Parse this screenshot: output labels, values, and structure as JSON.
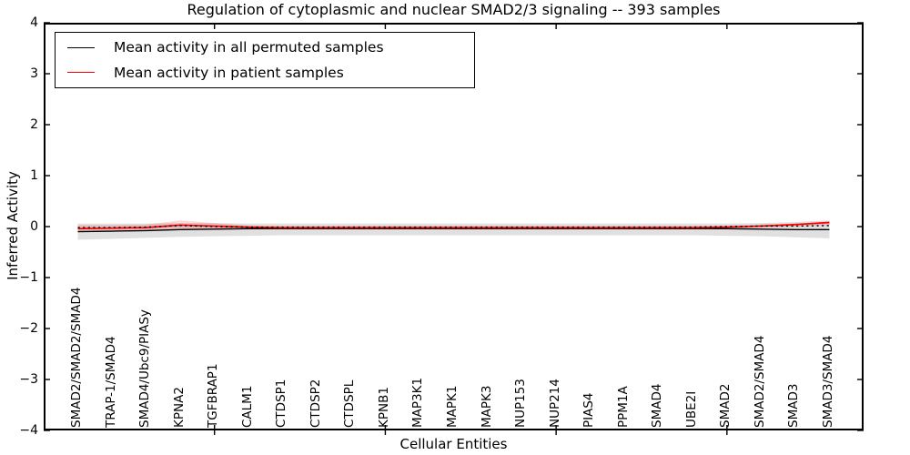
{
  "title": "Regulation of cytoplasmic and nuclear SMAD2/3 signaling -- 393 samples",
  "axes": {
    "ylabel": "Inferred Activity",
    "xlabel": "Cellular Entities",
    "yticks": [
      {
        "label": "4",
        "value": 4
      },
      {
        "label": "3",
        "value": 3
      },
      {
        "label": "2",
        "value": 2
      },
      {
        "label": "1",
        "value": 1
      },
      {
        "label": "0",
        "value": 0
      },
      {
        "label": "−1",
        "value": -1
      },
      {
        "label": "−2",
        "value": -2
      },
      {
        "label": "−3",
        "value": -3
      },
      {
        "label": "−4",
        "value": -4
      }
    ]
  },
  "legend": [
    {
      "label": "Mean activity in all permuted samples",
      "color": "#000000"
    },
    {
      "label": "Mean activity in patient samples",
      "color": "#ff0000"
    }
  ],
  "chart_data": {
    "type": "line",
    "title": "Regulation of cytoplasmic and nuclear SMAD2/3 signaling -- 393 samples",
    "xlabel": "Cellular Entities",
    "ylabel": "Inferred Activity",
    "ylim": [
      -4,
      4
    ],
    "xlim": [
      0,
      24
    ],
    "grid": false,
    "legend_position": "upper left",
    "xticks_numeric": [
      5,
      10,
      15,
      20
    ],
    "categories": [
      "SMAD2/SMAD2/SMAD4",
      "TRAP-1/SMAD4",
      "SMAD4/Ubc9/PIASy",
      "KPNA2",
      "TGFBRAP1",
      "CALM1",
      "CTDSP1",
      "CTDSP2",
      "CTDSPL",
      "KPNB1",
      "MAP3K1",
      "MAPK1",
      "MAPK3",
      "NUP153",
      "NUP214",
      "PIAS4",
      "PPM1A",
      "SMAD4",
      "UBE2I",
      "SMAD2",
      "SMAD2/SMAD4",
      "SMAD3",
      "SMAD3/SMAD4"
    ],
    "series": [
      {
        "name": "Mean activity in all permuted samples",
        "color": "#000000",
        "style": "solid",
        "values": [
          -0.1,
          -0.09,
          -0.08,
          -0.06,
          -0.05,
          -0.04,
          -0.04,
          -0.04,
          -0.04,
          -0.04,
          -0.04,
          -0.04,
          -0.04,
          -0.04,
          -0.04,
          -0.04,
          -0.04,
          -0.04,
          -0.04,
          -0.04,
          -0.05,
          -0.06,
          -0.06
        ]
      },
      {
        "name": "Mean activity in patient samples",
        "color": "#ff0000",
        "style": "solid",
        "values": [
          -0.04,
          -0.03,
          -0.02,
          0.03,
          0.01,
          -0.01,
          -0.02,
          -0.02,
          -0.02,
          -0.02,
          -0.02,
          -0.02,
          -0.02,
          -0.02,
          -0.02,
          -0.02,
          -0.02,
          -0.02,
          -0.02,
          -0.01,
          0.01,
          0.04,
          0.08
        ]
      },
      {
        "name": "unlabeled dotted overlay",
        "color": "#000000",
        "style": "dotted",
        "values": [
          -0.02,
          -0.02,
          -0.01,
          0.02,
          0.0,
          -0.01,
          -0.01,
          -0.01,
          -0.01,
          -0.01,
          -0.01,
          -0.01,
          -0.01,
          -0.01,
          -0.01,
          -0.01,
          -0.01,
          -0.01,
          -0.01,
          0.0,
          0.01,
          0.01,
          0.02
        ]
      }
    ],
    "bands": [
      {
        "name": "permuted samples spread",
        "color": "#000000",
        "opacity": 0.12,
        "upper": [
          0.06,
          0.06,
          0.06,
          0.07,
          0.07,
          0.06,
          0.06,
          0.06,
          0.06,
          0.06,
          0.06,
          0.06,
          0.06,
          0.06,
          0.06,
          0.06,
          0.06,
          0.06,
          0.06,
          0.06,
          0.07,
          0.09,
          0.12
        ],
        "lower": [
          -0.26,
          -0.24,
          -0.22,
          -0.2,
          -0.19,
          -0.18,
          -0.17,
          -0.17,
          -0.17,
          -0.17,
          -0.17,
          -0.17,
          -0.17,
          -0.17,
          -0.17,
          -0.17,
          -0.17,
          -0.17,
          -0.17,
          -0.18,
          -0.19,
          -0.21,
          -0.23
        ]
      },
      {
        "name": "patient samples spread",
        "color": "#ff0000",
        "opacity": 0.16,
        "upper": [
          0.03,
          0.03,
          0.04,
          0.12,
          0.07,
          0.02,
          0.01,
          0.01,
          0.01,
          0.01,
          0.01,
          0.01,
          0.01,
          0.01,
          0.01,
          0.01,
          0.01,
          0.01,
          0.01,
          0.02,
          0.04,
          0.06,
          0.1
        ],
        "lower": [
          -0.1,
          -0.09,
          -0.08,
          -0.06,
          -0.05,
          -0.04,
          -0.05,
          -0.05,
          -0.05,
          -0.05,
          -0.05,
          -0.05,
          -0.05,
          -0.05,
          -0.05,
          -0.05,
          -0.05,
          -0.05,
          -0.05,
          -0.04,
          -0.02,
          0.0,
          0.03
        ]
      }
    ]
  }
}
